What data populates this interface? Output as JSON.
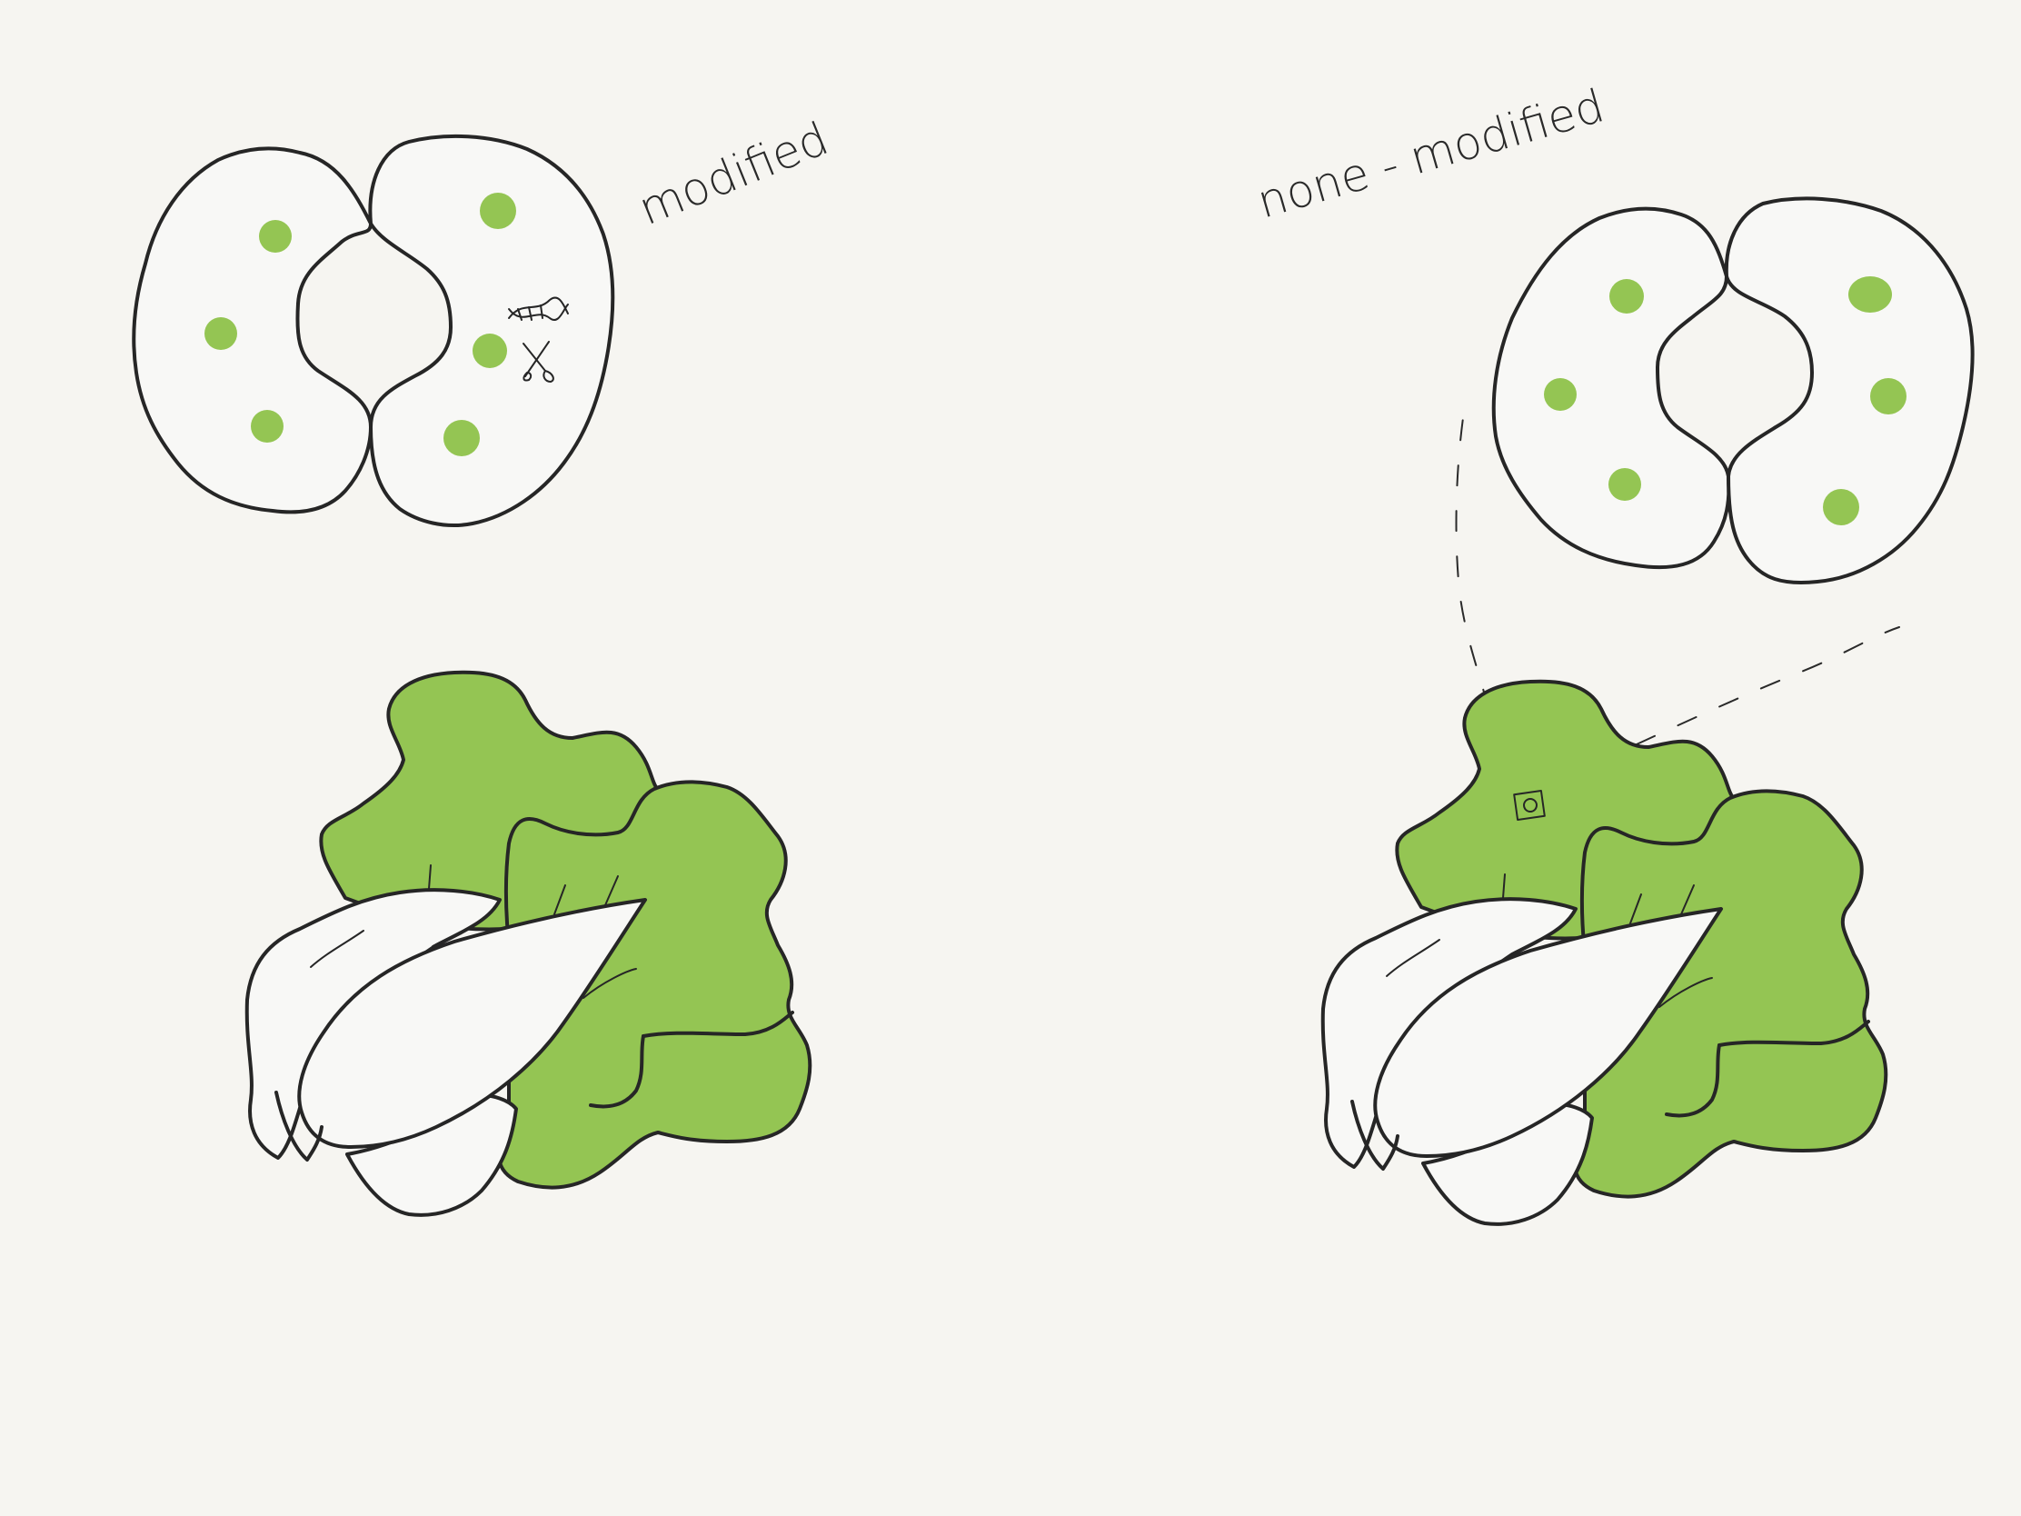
{
  "labels": {
    "left": "modified",
    "right": "none - modified"
  },
  "colors": {
    "background": "#f6f5f1",
    "green": "#94c553",
    "ink": "#262626"
  },
  "icons": {
    "dna": "dna-icon",
    "scissors": "scissors-icon",
    "gene_marker": "gene-marker-icon"
  }
}
